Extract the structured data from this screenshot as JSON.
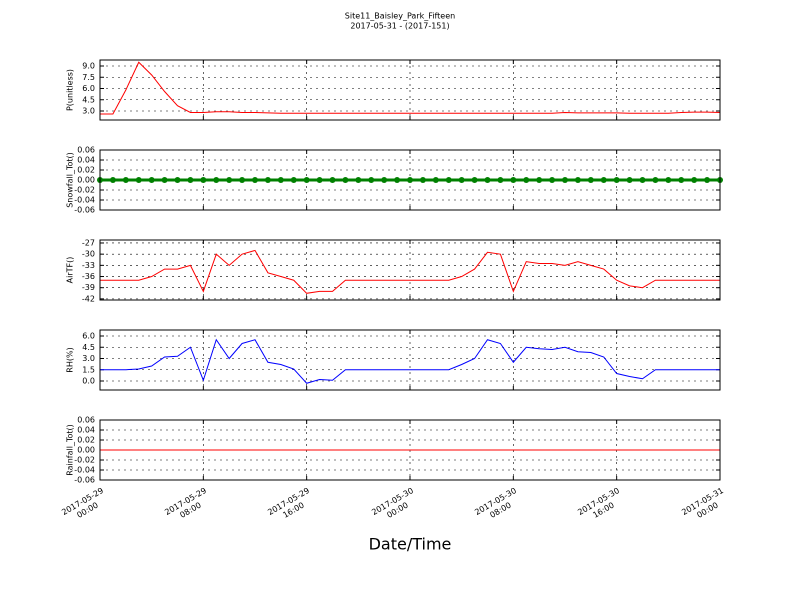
{
  "chart_data": [
    {
      "type": "line",
      "title": "Site11_Baisley_Park_Fifteen",
      "subtitle": "2017-05-31 - (2017-151)",
      "ylabel": "P(unitless)",
      "x": [
        "2017-05-29 00:00",
        "2017-05-29 01:00",
        "2017-05-29 02:00",
        "2017-05-29 03:00",
        "2017-05-29 04:00",
        "2017-05-29 05:00",
        "2017-05-29 06:00",
        "2017-05-29 07:00",
        "2017-05-29 08:00",
        "2017-05-29 09:00",
        "2017-05-29 10:00",
        "2017-05-29 11:00",
        "2017-05-29 12:00",
        "2017-05-29 13:00",
        "2017-05-29 14:00",
        "2017-05-29 15:00",
        "2017-05-29 16:00",
        "2017-05-29 17:00",
        "2017-05-29 18:00",
        "2017-05-29 19:00",
        "2017-05-29 20:00",
        "2017-05-29 21:00",
        "2017-05-29 22:00",
        "2017-05-29 23:00",
        "2017-05-30 00:00",
        "2017-05-30 01:00",
        "2017-05-30 02:00",
        "2017-05-30 03:00",
        "2017-05-30 04:00",
        "2017-05-30 05:00",
        "2017-05-30 06:00",
        "2017-05-30 07:00",
        "2017-05-30 08:00",
        "2017-05-30 09:00",
        "2017-05-30 10:00",
        "2017-05-30 11:00",
        "2017-05-30 12:00",
        "2017-05-30 13:00",
        "2017-05-30 14:00",
        "2017-05-30 15:00",
        "2017-05-30 16:00",
        "2017-05-30 17:00",
        "2017-05-30 18:00",
        "2017-05-30 19:00",
        "2017-05-30 20:00",
        "2017-05-30 21:00",
        "2017-05-30 22:00",
        "2017-05-30 23:00",
        "2017-05-31 00:00"
      ],
      "xlim": [
        "2017-05-29 00:00",
        "2017-05-31 00:00"
      ],
      "xticks": [
        "2017-05-29 00:00",
        "2017-05-29 08:00",
        "2017-05-29 16:00",
        "2017-05-30 00:00",
        "2017-05-30 08:00",
        "2017-05-30 16:00",
        "2017-05-31 00:00"
      ],
      "ylim": [
        1.8,
        9.8
      ],
      "yticks": [
        {
          "value": 3,
          "label": "3.0"
        },
        4.5,
        {
          "value": 6,
          "label": "6.0"
        },
        7.5,
        {
          "value": 9,
          "label": "9.0"
        }
      ],
      "grid": true,
      "series": [
        {
          "color": "#ff0000",
          "values": [
            2.6,
            2.6,
            5.8,
            9.5,
            7.8,
            5.6,
            3.7,
            2.8,
            2.8,
            2.9,
            2.9,
            2.8,
            2.8,
            2.75,
            2.7,
            2.7,
            2.7,
            2.7,
            2.7,
            2.7,
            2.7,
            2.7,
            2.7,
            2.7,
            2.7,
            2.7,
            2.7,
            2.7,
            2.7,
            2.7,
            2.7,
            2.7,
            2.7,
            2.7,
            2.7,
            2.7,
            2.8,
            2.75,
            2.75,
            2.75,
            2.75,
            2.7,
            2.7,
            2.7,
            2.7,
            2.8,
            2.85,
            2.85,
            2.8
          ]
        }
      ]
    },
    {
      "type": "scatter",
      "ylabel": "Snowfall_Tot()",
      "x": [
        "2017-05-29 00:00",
        "2017-05-29 01:00",
        "2017-05-29 02:00",
        "2017-05-29 03:00",
        "2017-05-29 04:00",
        "2017-05-29 05:00",
        "2017-05-29 06:00",
        "2017-05-29 07:00",
        "2017-05-29 08:00",
        "2017-05-29 09:00",
        "2017-05-29 10:00",
        "2017-05-29 11:00",
        "2017-05-29 12:00",
        "2017-05-29 13:00",
        "2017-05-29 14:00",
        "2017-05-29 15:00",
        "2017-05-29 16:00",
        "2017-05-29 17:00",
        "2017-05-29 18:00",
        "2017-05-29 19:00",
        "2017-05-29 20:00",
        "2017-05-29 21:00",
        "2017-05-29 22:00",
        "2017-05-29 23:00",
        "2017-05-30 00:00",
        "2017-05-30 01:00",
        "2017-05-30 02:00",
        "2017-05-30 03:00",
        "2017-05-30 04:00",
        "2017-05-30 05:00",
        "2017-05-30 06:00",
        "2017-05-30 07:00",
        "2017-05-30 08:00",
        "2017-05-30 09:00",
        "2017-05-30 10:00",
        "2017-05-30 11:00",
        "2017-05-30 12:00",
        "2017-05-30 13:00",
        "2017-05-30 14:00",
        "2017-05-30 15:00",
        "2017-05-30 16:00",
        "2017-05-30 17:00",
        "2017-05-30 18:00",
        "2017-05-30 19:00",
        "2017-05-30 20:00",
        "2017-05-30 21:00",
        "2017-05-30 22:00",
        "2017-05-30 23:00",
        "2017-05-31 00:00"
      ],
      "xlim": [
        "2017-05-29 00:00",
        "2017-05-31 00:00"
      ],
      "xticks": [
        "2017-05-29 00:00",
        "2017-05-29 08:00",
        "2017-05-29 16:00",
        "2017-05-30 00:00",
        "2017-05-30 08:00",
        "2017-05-30 16:00",
        "2017-05-31 00:00"
      ],
      "ylim": [
        -0.06,
        0.06
      ],
      "yticks": [
        -0.06,
        -0.04,
        -0.02,
        {
          "value": 0,
          "label": "0.00"
        },
        0.02,
        0.04,
        0.06
      ],
      "grid": true,
      "series": [
        {
          "color": "#008000",
          "values": [
            0,
            0,
            0,
            0,
            0,
            0,
            0,
            0,
            0,
            0,
            0,
            0,
            0,
            0,
            0,
            0,
            0,
            0,
            0,
            0,
            0,
            0,
            0,
            0,
            0,
            0,
            0,
            0,
            0,
            0,
            0,
            0,
            0,
            0,
            0,
            0,
            0,
            0,
            0,
            0,
            0,
            0,
            0,
            0,
            0,
            0,
            0,
            0,
            0
          ]
        }
      ]
    },
    {
      "type": "line",
      "ylabel": "AirTF()",
      "x": [
        "2017-05-29 00:00",
        "2017-05-29 01:00",
        "2017-05-29 02:00",
        "2017-05-29 03:00",
        "2017-05-29 04:00",
        "2017-05-29 05:00",
        "2017-05-29 06:00",
        "2017-05-29 07:00",
        "2017-05-29 08:00",
        "2017-05-29 09:00",
        "2017-05-29 10:00",
        "2017-05-29 11:00",
        "2017-05-29 12:00",
        "2017-05-29 13:00",
        "2017-05-29 14:00",
        "2017-05-29 15:00",
        "2017-05-29 16:00",
        "2017-05-29 17:00",
        "2017-05-29 18:00",
        "2017-05-29 19:00",
        "2017-05-29 20:00",
        "2017-05-29 21:00",
        "2017-05-29 22:00",
        "2017-05-29 23:00",
        "2017-05-30 00:00",
        "2017-05-30 01:00",
        "2017-05-30 02:00",
        "2017-05-30 03:00",
        "2017-05-30 04:00",
        "2017-05-30 05:00",
        "2017-05-30 06:00",
        "2017-05-30 07:00",
        "2017-05-30 08:00",
        "2017-05-30 09:00",
        "2017-05-30 10:00",
        "2017-05-30 11:00",
        "2017-05-30 12:00",
        "2017-05-30 13:00",
        "2017-05-30 14:00",
        "2017-05-30 15:00",
        "2017-05-30 16:00",
        "2017-05-30 17:00",
        "2017-05-30 18:00",
        "2017-05-30 19:00",
        "2017-05-30 20:00",
        "2017-05-30 21:00",
        "2017-05-30 22:00",
        "2017-05-30 23:00",
        "2017-05-31 00:00"
      ],
      "xlim": [
        "2017-05-29 00:00",
        "2017-05-31 00:00"
      ],
      "xticks": [
        "2017-05-29 00:00",
        "2017-05-29 08:00",
        "2017-05-29 16:00",
        "2017-05-30 00:00",
        "2017-05-30 08:00",
        "2017-05-30 16:00",
        "2017-05-31 00:00"
      ],
      "ylim": [
        -42.3,
        -26.2
      ],
      "yticks": [
        -42,
        -39,
        -36,
        -33,
        -30,
        -27
      ],
      "grid": true,
      "series": [
        {
          "color": "#ff0000",
          "values": [
            -37,
            -37,
            -37,
            -37,
            -36,
            -34,
            -34,
            -33,
            -40,
            -30,
            -33,
            -30,
            -29,
            -35,
            -36,
            -37,
            -40.5,
            -40,
            -40,
            -37,
            -37,
            -37,
            -37,
            -37,
            -37,
            -37,
            -37,
            -37,
            -36,
            -34,
            -29.5,
            -30,
            -40,
            -32,
            -32.5,
            -32.5,
            -33,
            -32,
            -33,
            -34,
            -37,
            -38.5,
            -39,
            -37,
            -37,
            -37,
            -37,
            -37,
            -37
          ]
        }
      ]
    },
    {
      "type": "line",
      "ylabel": "RH(%)",
      "x": [
        "2017-05-29 00:00",
        "2017-05-29 01:00",
        "2017-05-29 02:00",
        "2017-05-29 03:00",
        "2017-05-29 04:00",
        "2017-05-29 05:00",
        "2017-05-29 06:00",
        "2017-05-29 07:00",
        "2017-05-29 08:00",
        "2017-05-29 09:00",
        "2017-05-29 10:00",
        "2017-05-29 11:00",
        "2017-05-29 12:00",
        "2017-05-29 13:00",
        "2017-05-29 14:00",
        "2017-05-29 15:00",
        "2017-05-29 16:00",
        "2017-05-29 17:00",
        "2017-05-29 18:00",
        "2017-05-29 19:00",
        "2017-05-29 20:00",
        "2017-05-29 21:00",
        "2017-05-29 22:00",
        "2017-05-29 23:00",
        "2017-05-30 00:00",
        "2017-05-30 01:00",
        "2017-05-30 02:00",
        "2017-05-30 03:00",
        "2017-05-30 04:00",
        "2017-05-30 05:00",
        "2017-05-30 06:00",
        "2017-05-30 07:00",
        "2017-05-30 08:00",
        "2017-05-30 09:00",
        "2017-05-30 10:00",
        "2017-05-30 11:00",
        "2017-05-30 12:00",
        "2017-05-30 13:00",
        "2017-05-30 14:00",
        "2017-05-30 15:00",
        "2017-05-30 16:00",
        "2017-05-30 17:00",
        "2017-05-30 18:00",
        "2017-05-30 19:00",
        "2017-05-30 20:00",
        "2017-05-30 21:00",
        "2017-05-30 22:00",
        "2017-05-30 23:00",
        "2017-05-31 00:00"
      ],
      "xlim": [
        "2017-05-29 00:00",
        "2017-05-31 00:00"
      ],
      "xticks": [
        "2017-05-29 00:00",
        "2017-05-29 08:00",
        "2017-05-29 16:00",
        "2017-05-30 00:00",
        "2017-05-30 08:00",
        "2017-05-30 16:00",
        "2017-05-31 00:00"
      ],
      "ylim": [
        -1.2,
        6.8
      ],
      "yticks": [
        {
          "value": 0,
          "label": "0.0"
        },
        1.5,
        {
          "value": 3,
          "label": "3.0"
        },
        4.5,
        {
          "value": 6,
          "label": "6.0"
        }
      ],
      "grid": true,
      "series": [
        {
          "color": "#0000ff",
          "values": [
            1.5,
            1.5,
            1.5,
            1.6,
            2.0,
            3.2,
            3.3,
            4.5,
            0.1,
            5.5,
            3.0,
            5.0,
            5.5,
            2.5,
            2.2,
            1.6,
            -0.3,
            0.2,
            0.1,
            1.5,
            1.5,
            1.5,
            1.5,
            1.5,
            1.5,
            1.5,
            1.5,
            1.5,
            2.2,
            3.0,
            5.5,
            5.0,
            2.5,
            4.5,
            4.3,
            4.2,
            4.5,
            3.9,
            3.8,
            3.2,
            1.0,
            0.6,
            0.3,
            1.5,
            1.5,
            1.5,
            1.5,
            1.5,
            1.5
          ]
        }
      ]
    },
    {
      "type": "line",
      "ylabel": "Rainfall_Tot()",
      "xlabel": "Date/Time",
      "x": [
        "2017-05-29 00:00",
        "2017-05-29 01:00",
        "2017-05-29 02:00",
        "2017-05-29 03:00",
        "2017-05-29 04:00",
        "2017-05-29 05:00",
        "2017-05-29 06:00",
        "2017-05-29 07:00",
        "2017-05-29 08:00",
        "2017-05-29 09:00",
        "2017-05-29 10:00",
        "2017-05-29 11:00",
        "2017-05-29 12:00",
        "2017-05-29 13:00",
        "2017-05-29 14:00",
        "2017-05-29 15:00",
        "2017-05-29 16:00",
        "2017-05-29 17:00",
        "2017-05-29 18:00",
        "2017-05-29 19:00",
        "2017-05-29 20:00",
        "2017-05-29 21:00",
        "2017-05-29 22:00",
        "2017-05-29 23:00",
        "2017-05-30 00:00",
        "2017-05-30 01:00",
        "2017-05-30 02:00",
        "2017-05-30 03:00",
        "2017-05-30 04:00",
        "2017-05-30 05:00",
        "2017-05-30 06:00",
        "2017-05-30 07:00",
        "2017-05-30 08:00",
        "2017-05-30 09:00",
        "2017-05-30 10:00",
        "2017-05-30 11:00",
        "2017-05-30 12:00",
        "2017-05-30 13:00",
        "2017-05-30 14:00",
        "2017-05-30 15:00",
        "2017-05-30 16:00",
        "2017-05-30 17:00",
        "2017-05-30 18:00",
        "2017-05-30 19:00",
        "2017-05-30 20:00",
        "2017-05-30 21:00",
        "2017-05-30 22:00",
        "2017-05-30 23:00",
        "2017-05-31 00:00"
      ],
      "xlim": [
        "2017-05-29 00:00",
        "2017-05-31 00:00"
      ],
      "xticks": [
        {
          "value": "2017-05-29 00:00",
          "label": "2017-05-29\n00:00"
        },
        {
          "value": "2017-05-29 08:00",
          "label": "2017-05-29\n08:00"
        },
        {
          "value": "2017-05-29 16:00",
          "label": "2017-05-29\n16:00"
        },
        {
          "value": "2017-05-30 00:00",
          "label": "2017-05-30\n00:00"
        },
        {
          "value": "2017-05-30 08:00",
          "label": "2017-05-30\n08:00"
        },
        {
          "value": "2017-05-30 16:00",
          "label": "2017-05-30\n16:00"
        },
        {
          "value": "2017-05-31 00:00",
          "label": "2017-05-31\n00:00"
        }
      ],
      "ylim": [
        -0.06,
        0.06
      ],
      "yticks": [
        -0.06,
        -0.04,
        -0.02,
        {
          "value": 0,
          "label": "0.00"
        },
        0.02,
        0.04,
        0.06
      ],
      "grid": true,
      "series": [
        {
          "color": "#ff0000",
          "values": [
            0,
            0,
            0,
            0,
            0,
            0,
            0,
            0,
            0,
            0,
            0,
            0,
            0,
            0,
            0,
            0,
            0,
            0,
            0,
            0,
            0,
            0,
            0,
            0,
            0,
            0,
            0,
            0,
            0,
            0,
            0,
            0,
            0,
            0,
            0,
            0,
            0,
            0,
            0,
            0,
            0,
            0,
            0,
            0,
            0,
            0,
            0,
            0,
            0
          ]
        }
      ]
    }
  ]
}
